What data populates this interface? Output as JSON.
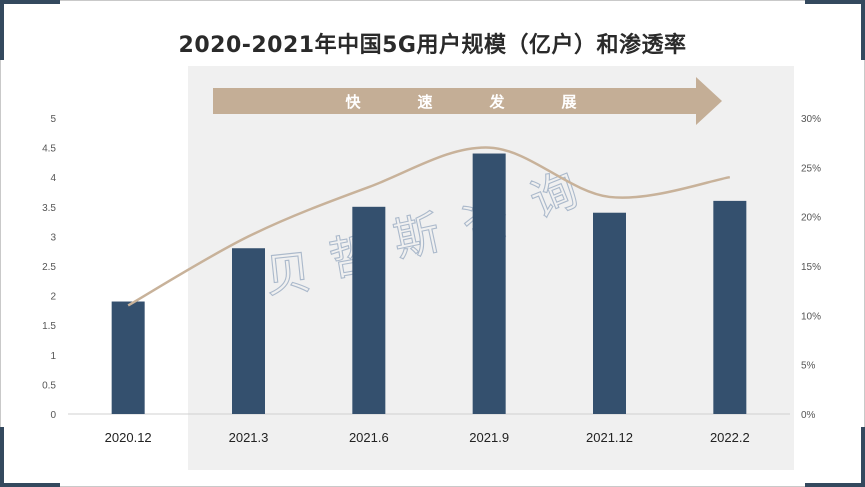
{
  "title": "2020-2021年中国5G用户规模（亿户）和渗透率",
  "arrow_label": [
    "快",
    "速",
    "发",
    "展"
  ],
  "watermark": [
    "贝",
    "哲",
    "斯",
    "咨",
    "询"
  ],
  "colors": {
    "bar": "#34506e",
    "line": "#c8b29a",
    "arrow": "#c4ae96",
    "shade": "#f0f0f0",
    "accent": "#34495e"
  },
  "chart_data": {
    "type": "bar",
    "title": "2020-2021年中国5G用户规模（亿户）和渗透率",
    "categories": [
      "2020.12",
      "2021.3",
      "2021.6",
      "2021.9",
      "2021.12",
      "2022.2"
    ],
    "series": [
      {
        "type": "bar",
        "axis": "left",
        "values": [
          1.9,
          2.8,
          3.5,
          4.4,
          3.4,
          3.6
        ]
      },
      {
        "type": "line",
        "axis": "right",
        "values": [
          0.11,
          0.18,
          0.23,
          0.27,
          0.22,
          0.24
        ]
      }
    ],
    "y_left": {
      "ticks": [
        "0",
        "0.5",
        "1",
        "1.5",
        "2",
        "2.5",
        "3",
        "3.5",
        "4",
        "4.5",
        "5"
      ],
      "range": [
        0,
        5
      ]
    },
    "y_right": {
      "ticks": [
        "0%",
        "5%",
        "10%",
        "15%",
        "20%",
        "25%",
        "30%"
      ],
      "range": [
        0,
        0.3
      ]
    },
    "grid": false
  }
}
